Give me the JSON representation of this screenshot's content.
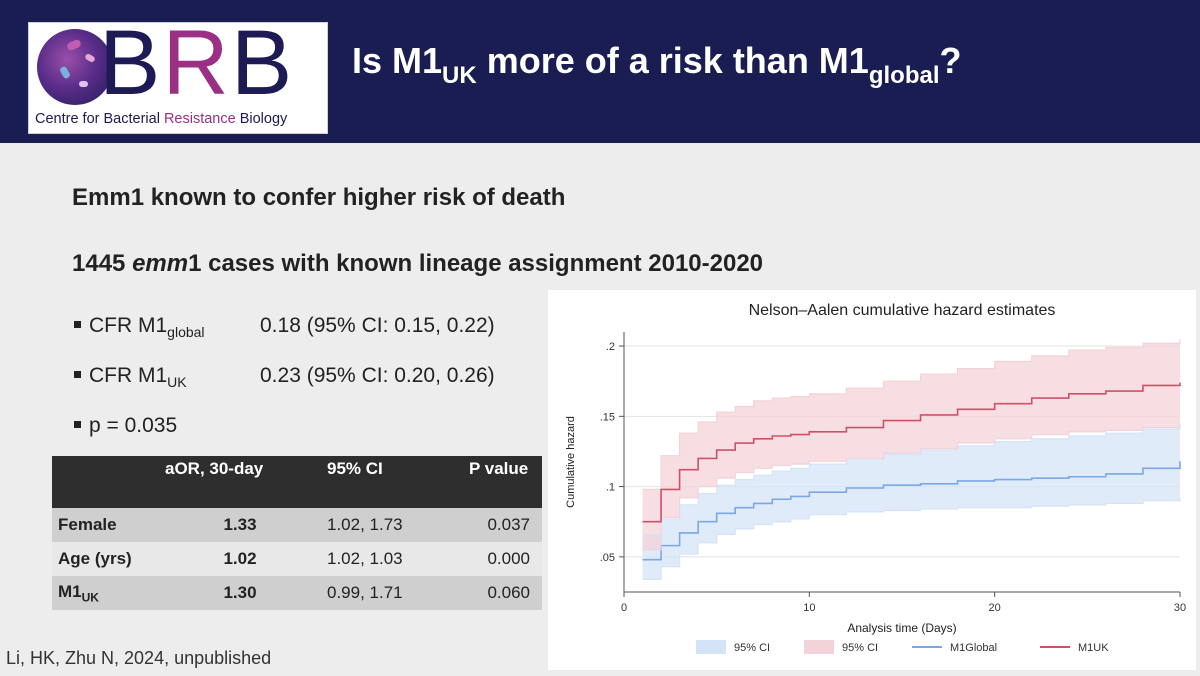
{
  "header": {
    "logo": {
      "letters": "BRB",
      "tagline_pre": "Centre for Bacterial ",
      "tagline_hl": "Resistance",
      "tagline_post": " Biology"
    },
    "title_a": "Is M1",
    "title_sub_a": "UK",
    "title_b": " more of a risk than M1",
    "title_sub_b": "global",
    "title_c": "?"
  },
  "body": {
    "heading1": "Emm1 known to confer higher risk of death",
    "heading2_pre": "1445 ",
    "heading2_em": "emm",
    "heading2_post": "1 cases with known lineage assignment 2010-2020",
    "bullets": [
      {
        "label": "CFR M1",
        "sub": "global",
        "value": "0.18 (95% CI: 0.15, 0.22)"
      },
      {
        "label": "CFR M1",
        "sub": "UK",
        "value": "0.23 (95% CI: 0.20, 0.26)"
      },
      {
        "label": "p = 0.035",
        "sub": "",
        "value": ""
      }
    ]
  },
  "table": {
    "headers": [
      "",
      "aOR, 30-day",
      "95% CI",
      "P value"
    ],
    "rows": [
      {
        "label": "Female",
        "label_sub": "",
        "aor": "1.33",
        "ci": "1.02, 1.73",
        "p": "0.037"
      },
      {
        "label": "Age (yrs)",
        "label_sub": "",
        "aor": "1.02",
        "ci": "1.02, 1.03",
        "p": "0.000"
      },
      {
        "label": "M1",
        "label_sub": "UK",
        "aor": "1.30",
        "ci": "0.99, 1.71",
        "p": "0.060"
      }
    ]
  },
  "citation": "Li, HK, Zhu N, 2024, unpublished",
  "chart_data": {
    "type": "line",
    "title": "Nelson–Aalen cumulative hazard estimates",
    "xlabel": "Analysis time (Days)",
    "ylabel": "Cumulative hazard",
    "xlim": [
      0,
      30
    ],
    "ylim": [
      0.025,
      0.21
    ],
    "xticks": [
      0,
      10,
      20,
      30
    ],
    "yticks": [
      0.05,
      0.1,
      0.15,
      0.2
    ],
    "ytick_labels": [
      ".05",
      ".1",
      ".15",
      ".2"
    ],
    "grid": true,
    "legend_position": "bottom",
    "legend": [
      "95% CI",
      "95% CI",
      "M1Global",
      "M1UK"
    ],
    "colors": {
      "m1global": "#7aa8e6",
      "m1global_ci": "#d4e4f7",
      "m1uk": "#d05068",
      "m1uk_ci": "#f3d3da"
    },
    "series": [
      {
        "name": "M1Global",
        "x": [
          1,
          2,
          3,
          4,
          5,
          6,
          7,
          8,
          9,
          10,
          12,
          14,
          16,
          18,
          20,
          22,
          24,
          26,
          28,
          30
        ],
        "y": [
          0.048,
          0.058,
          0.067,
          0.075,
          0.081,
          0.085,
          0.088,
          0.091,
          0.093,
          0.096,
          0.099,
          0.101,
          0.102,
          0.104,
          0.105,
          0.106,
          0.107,
          0.109,
          0.113,
          0.118
        ],
        "ci_low": [
          0.034,
          0.043,
          0.052,
          0.06,
          0.066,
          0.07,
          0.073,
          0.075,
          0.077,
          0.08,
          0.082,
          0.083,
          0.084,
          0.085,
          0.085,
          0.086,
          0.087,
          0.088,
          0.09,
          0.092
        ],
        "ci_high": [
          0.066,
          0.077,
          0.087,
          0.095,
          0.101,
          0.105,
          0.108,
          0.111,
          0.113,
          0.116,
          0.12,
          0.123,
          0.126,
          0.129,
          0.132,
          0.134,
          0.136,
          0.138,
          0.141,
          0.145
        ]
      },
      {
        "name": "M1UK",
        "x": [
          1,
          2,
          3,
          4,
          5,
          6,
          7,
          8,
          9,
          10,
          12,
          14,
          16,
          18,
          20,
          22,
          24,
          26,
          28,
          30
        ],
        "y": [
          0.075,
          0.098,
          0.112,
          0.12,
          0.126,
          0.131,
          0.134,
          0.136,
          0.137,
          0.139,
          0.142,
          0.147,
          0.151,
          0.155,
          0.159,
          0.163,
          0.166,
          0.168,
          0.172,
          0.174
        ],
        "ci_low": [
          0.055,
          0.078,
          0.092,
          0.1,
          0.106,
          0.11,
          0.113,
          0.115,
          0.116,
          0.118,
          0.12,
          0.124,
          0.127,
          0.131,
          0.134,
          0.137,
          0.139,
          0.14,
          0.142,
          0.143
        ],
        "ci_high": [
          0.098,
          0.122,
          0.138,
          0.146,
          0.153,
          0.157,
          0.161,
          0.163,
          0.164,
          0.166,
          0.17,
          0.175,
          0.18,
          0.184,
          0.189,
          0.193,
          0.197,
          0.199,
          0.202,
          0.205
        ]
      }
    ]
  }
}
